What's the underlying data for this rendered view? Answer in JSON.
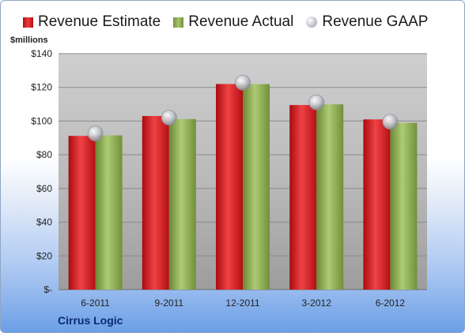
{
  "legend": {
    "estimate_label": "Revenue Estimate",
    "actual_label": "Revenue Actual",
    "gaap_label": "Revenue GAAP"
  },
  "unit_label": "$millions",
  "company_label": "Cirrus Logic",
  "colors": {
    "estimate": "#d4171b",
    "actual": "#8aa64f",
    "gaap": "#c0c3c9",
    "plot_bg": "#c8c8c8"
  },
  "chart_data": {
    "type": "bar",
    "title": "",
    "xlabel": "",
    "ylabel": "$millions",
    "categories": [
      "6-2011",
      "9-2011",
      "12-2011",
      "3-2012",
      "6-2012"
    ],
    "series": [
      {
        "name": "Revenue Estimate",
        "kind": "bar",
        "values": [
          91.2,
          103.0,
          122.0,
          109.5,
          101.0
        ]
      },
      {
        "name": "Revenue Actual",
        "kind": "bar",
        "values": [
          91.5,
          101.2,
          121.9,
          109.9,
          98.9
        ]
      },
      {
        "name": "Revenue GAAP",
        "kind": "marker",
        "values": [
          92.6,
          102.0,
          122.8,
          111.1,
          99.6
        ]
      }
    ],
    "ylim": [
      0,
      140
    ],
    "yticks": [
      0,
      20,
      40,
      60,
      80,
      100,
      120,
      140
    ],
    "ytick_labels": [
      "$-",
      "$20",
      "$40",
      "$60",
      "$80",
      "$100",
      "$120",
      "$140"
    ],
    "grid": true,
    "legend_position": "top"
  }
}
